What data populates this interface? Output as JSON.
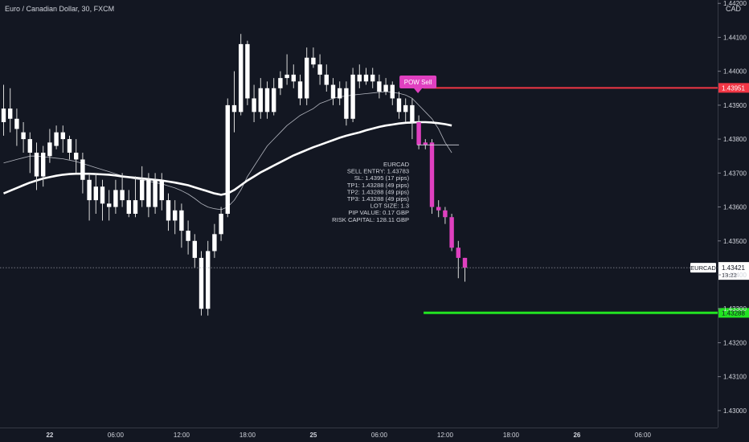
{
  "header": {
    "title": "Euro / Canadian Dollar, 30, FXCM",
    "currency": "CAD"
  },
  "chart_data": {
    "type": "candlestick",
    "symbol": "EURCAD",
    "y_axis": {
      "range": [
        1.4295,
        1.4421
      ],
      "ticks": [
        "1.43000",
        "1.43100",
        "1.43200",
        "1.43300",
        "1.43400",
        "1.43500",
        "1.43600",
        "1.43700",
        "1.43800",
        "1.43900",
        "1.44000",
        "1.44100",
        "1.44200"
      ]
    },
    "x_axis": {
      "ticks": [
        {
          "label": "22",
          "bar": 7
        },
        {
          "label": "06:00",
          "bar": 17
        },
        {
          "label": "12:00",
          "bar": 27
        },
        {
          "label": "18:00",
          "bar": 37
        },
        {
          "label": "25",
          "bar": 47
        },
        {
          "label": "06:00",
          "bar": 57
        },
        {
          "label": "12:00",
          "bar": 67
        },
        {
          "label": "18:00",
          "bar": 77
        },
        {
          "label": "26",
          "bar": 87
        },
        {
          "label": "06:00",
          "bar": 97
        }
      ]
    },
    "candles": [
      [
        1.4385,
        1.4389,
        1.4396,
        1.4381
      ],
      [
        1.4389,
        1.4386,
        1.4395,
        1.4382
      ],
      [
        1.4386,
        1.4383,
        1.4389,
        1.4378
      ],
      [
        1.4382,
        1.438,
        1.4385,
        1.4376
      ],
      [
        1.438,
        1.4376,
        1.4382,
        1.437
      ],
      [
        1.4376,
        1.4369,
        1.4379,
        1.4365
      ],
      [
        1.4369,
        1.4376,
        1.4378,
        1.4366
      ],
      [
        1.4375,
        1.4379,
        1.4383,
        1.4373
      ],
      [
        1.4378,
        1.4382,
        1.4384,
        1.4377
      ],
      [
        1.4382,
        1.438,
        1.4384,
        1.4376
      ],
      [
        1.438,
        1.4376,
        1.4381,
        1.4374
      ],
      [
        1.4376,
        1.4374,
        1.438,
        1.437
      ],
      [
        1.4374,
        1.4368,
        1.4376,
        1.4364
      ],
      [
        1.4368,
        1.4362,
        1.437,
        1.4356
      ],
      [
        1.4362,
        1.4366,
        1.437,
        1.4358
      ],
      [
        1.4366,
        1.4361,
        1.4368,
        1.4356
      ],
      [
        1.4361,
        1.436,
        1.4365,
        1.4356
      ],
      [
        1.436,
        1.4365,
        1.4368,
        1.4358
      ],
      [
        1.4365,
        1.4362,
        1.437,
        1.436
      ],
      [
        1.4362,
        1.4358,
        1.4365,
        1.4357
      ],
      [
        1.4358,
        1.4362,
        1.4369,
        1.4357
      ],
      [
        1.4362,
        1.4368,
        1.4372,
        1.436
      ],
      [
        1.4368,
        1.436,
        1.437,
        1.4357
      ],
      [
        1.436,
        1.4368,
        1.437,
        1.4358
      ],
      [
        1.4368,
        1.4362,
        1.437,
        1.4359
      ],
      [
        1.4362,
        1.4356,
        1.4364,
        1.4353
      ],
      [
        1.4356,
        1.4359,
        1.4362,
        1.4352
      ],
      [
        1.4359,
        1.4353,
        1.4361,
        1.4348
      ],
      [
        1.4353,
        1.435,
        1.4356,
        1.4346
      ],
      [
        1.435,
        1.4345,
        1.4352,
        1.4342
      ],
      [
        1.4345,
        1.433,
        1.4347,
        1.4328
      ],
      [
        1.433,
        1.4347,
        1.435,
        1.4328
      ],
      [
        1.4347,
        1.4352,
        1.4355,
        1.4345
      ],
      [
        1.4352,
        1.4358,
        1.436,
        1.435
      ],
      [
        1.4358,
        1.439,
        1.4392,
        1.4357
      ],
      [
        1.439,
        1.4388,
        1.44,
        1.4382
      ],
      [
        1.4388,
        1.4408,
        1.4411,
        1.4387
      ],
      [
        1.4408,
        1.4392,
        1.4409,
        1.439
      ],
      [
        1.4392,
        1.4388,
        1.4396,
        1.4385
      ],
      [
        1.4388,
        1.4395,
        1.4398,
        1.4386
      ],
      [
        1.4395,
        1.4388,
        1.4397,
        1.4386
      ],
      [
        1.4388,
        1.4395,
        1.4398,
        1.4387
      ],
      [
        1.4395,
        1.4398,
        1.44,
        1.4393
      ],
      [
        1.4398,
        1.4399,
        1.4405,
        1.4396
      ],
      [
        1.4399,
        1.4397,
        1.4402,
        1.4395
      ],
      [
        1.4397,
        1.4392,
        1.4399,
        1.439
      ],
      [
        1.4392,
        1.4404,
        1.4407,
        1.439
      ],
      [
        1.4404,
        1.4402,
        1.4407,
        1.4401
      ],
      [
        1.4402,
        1.4399,
        1.4405,
        1.4396
      ],
      [
        1.4399,
        1.4396,
        1.4402,
        1.4394
      ],
      [
        1.4396,
        1.4392,
        1.4398,
        1.439
      ],
      [
        1.4392,
        1.4395,
        1.4397,
        1.439
      ],
      [
        1.4395,
        1.4386,
        1.4397,
        1.4384
      ],
      [
        1.4386,
        1.4399,
        1.4401,
        1.4385
      ],
      [
        1.4399,
        1.4397,
        1.4402,
        1.4395
      ],
      [
        1.4397,
        1.4399,
        1.4401,
        1.4396
      ],
      [
        1.4399,
        1.4397,
        1.4401,
        1.4395
      ],
      [
        1.4397,
        1.4394,
        1.4399,
        1.4392
      ],
      [
        1.4394,
        1.4396,
        1.4398,
        1.4393
      ],
      [
        1.4396,
        1.4392,
        1.4397,
        1.439
      ],
      [
        1.4392,
        1.4388,
        1.4394,
        1.4386
      ],
      [
        1.4388,
        1.439,
        1.4392,
        1.4385
      ],
      [
        1.439,
        1.4385,
        1.4392,
        1.438
      ],
      [
        1.4385,
        1.43783,
        1.4387,
        1.4377
      ],
      [
        1.43783,
        1.4379,
        1.438,
        1.4377
      ],
      [
        1.4379,
        1.436,
        1.438,
        1.4358
      ],
      [
        1.436,
        1.4359,
        1.4362,
        1.4357
      ],
      [
        1.4359,
        1.4357,
        1.436,
        1.4355
      ],
      [
        1.4357,
        1.4348,
        1.4358,
        1.4347
      ],
      [
        1.4348,
        1.4345,
        1.435,
        1.4339
      ],
      [
        1.4345,
        1.43421,
        1.4345,
        1.4338
      ]
    ],
    "moving_averages": [
      {
        "style": "thin",
        "values": [
          1.4373,
          1.43735,
          1.4374,
          1.43745,
          1.4375,
          1.4375,
          1.43748,
          1.43746,
          1.43744,
          1.43742,
          1.43738,
          1.43734,
          1.43728,
          1.43722,
          1.43716,
          1.4371,
          1.43704,
          1.43698,
          1.43692,
          1.43686,
          1.43682,
          1.4368,
          1.43676,
          1.43672,
          1.43668,
          1.43662,
          1.43656,
          1.43648,
          1.43638,
          1.43625,
          1.4361,
          1.436,
          1.43595,
          1.43592,
          1.436,
          1.4362,
          1.4365,
          1.4369,
          1.4372,
          1.4375,
          1.4378,
          1.438,
          1.4382,
          1.4384,
          1.43855,
          1.4387,
          1.4388,
          1.4389,
          1.43905,
          1.43912,
          1.4392,
          1.43925,
          1.43927,
          1.4393,
          1.43932,
          1.43934,
          1.43936,
          1.43938,
          1.4394,
          1.43938,
          1.43935,
          1.4393,
          1.4392,
          1.439,
          1.4388,
          1.4386,
          1.4383,
          1.4379,
          1.4376
        ]
      },
      {
        "style": "thick",
        "values": [
          1.4364,
          1.43648,
          1.43656,
          1.43664,
          1.43672,
          1.43678,
          1.43684,
          1.43688,
          1.43692,
          1.43695,
          1.43697,
          1.43698,
          1.43698,
          1.43698,
          1.43697,
          1.43696,
          1.43695,
          1.43693,
          1.4369,
          1.43688,
          1.43686,
          1.43684,
          1.43682,
          1.4368,
          1.43678,
          1.43675,
          1.43672,
          1.43668,
          1.43664,
          1.43658,
          1.43652,
          1.43646,
          1.4364,
          1.43636,
          1.4364,
          1.4365,
          1.43664,
          1.43678,
          1.4369,
          1.43702,
          1.43712,
          1.43722,
          1.43732,
          1.43742,
          1.43752,
          1.4376,
          1.43768,
          1.43776,
          1.43783,
          1.4379,
          1.43797,
          1.43804,
          1.4381,
          1.43815,
          1.4382,
          1.43826,
          1.43831,
          1.43836,
          1.4384,
          1.43843,
          1.43846,
          1.43848,
          1.43849,
          1.4385,
          1.4385,
          1.43849,
          1.43847,
          1.43844,
          1.4384
        ]
      }
    ],
    "signal": {
      "label": "POW Sell",
      "bar": 63
    },
    "annotation_lines": [
      "EURCAD",
      "SELL ENTRY: 1.43783",
      "SL: 1.4395 (17 pips)",
      "TP1: 1.43288 (49 pips)",
      "TP2: 1.43288 (49 pips)",
      "TP3: 1.43288 (49 pips)",
      "LOT SIZE: 1.3",
      "PIP VALUE: 0.17 GBP",
      "RISK CAPITAL: 128.11 GBP"
    ],
    "entry_price": 1.43783,
    "stop_loss": {
      "price": 1.43951,
      "label": "1.43951",
      "color": "#f23645"
    },
    "take_profit": {
      "price": 1.43288,
      "label": "1.43288",
      "color": "#22e422"
    },
    "last_price": {
      "price": 1.43421,
      "label": "1.43421",
      "countdown": "13:22",
      "symbol_tag": "EURCAD"
    },
    "colors": {
      "background": "#131722",
      "candle": "#ffffff",
      "signal_candle": "#e040c0",
      "signal_badge": "#e040c0",
      "text": "#d1d4dc"
    }
  }
}
